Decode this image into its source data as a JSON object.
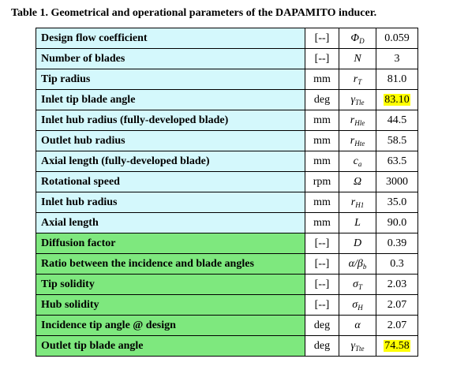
{
  "caption": "Table 1. Geometrical and operational parameters of the DAPAMITO inducer.",
  "colors": {
    "geometric_rows": "#d4f8fc",
    "operational_rows": "#7ee87e",
    "highlight": "#ffff00"
  },
  "rows": [
    {
      "name": "Design flow coefficient",
      "unit": "[--]",
      "symbol": "ΦD",
      "sym_main": "Φ",
      "sym_sub": "D",
      "value": "0.059",
      "group": "geometric"
    },
    {
      "name": "Number of blades",
      "unit": "[--]",
      "symbol": "N",
      "sym_main": "N",
      "sym_sub": "",
      "value": "3",
      "group": "geometric"
    },
    {
      "name": "Tip radius",
      "unit": "mm",
      "symbol": "rT",
      "sym_main": "r",
      "sym_sub": "T",
      "value": "81.0",
      "group": "geometric"
    },
    {
      "name": "Inlet tip blade angle",
      "unit": "deg",
      "symbol": "γTle",
      "sym_main": "γ",
      "sym_sub": "Tle",
      "value": "83.10",
      "group": "geometric",
      "highlight": true
    },
    {
      "name": "Inlet hub radius (fully-developed blade)",
      "unit": "mm",
      "symbol": "rHle",
      "sym_main": "r",
      "sym_sub": "Hle",
      "value": "44.5",
      "group": "geometric"
    },
    {
      "name": "Outlet hub radius",
      "unit": "mm",
      "symbol": "rHte",
      "sym_main": "r",
      "sym_sub": "Hte",
      "value": "58.5",
      "group": "geometric"
    },
    {
      "name": "Axial length (fully-developed blade)",
      "unit": "mm",
      "symbol": "ca",
      "sym_main": "c",
      "sym_sub": "a",
      "value": "63.5",
      "group": "geometric"
    },
    {
      "name": "Rotational speed",
      "unit": "rpm",
      "symbol": "Ω",
      "sym_main": "Ω",
      "sym_sub": "",
      "value": "3000",
      "group": "geometric"
    },
    {
      "name": "Inlet hub radius",
      "unit": "mm",
      "symbol": "rH1",
      "sym_main": "r",
      "sym_sub": "H1",
      "value": "35.0",
      "group": "geometric"
    },
    {
      "name": "Axial length",
      "unit": "mm",
      "symbol": "L",
      "sym_main": "L",
      "sym_sub": "",
      "value": "90.0",
      "group": "geometric"
    },
    {
      "name": "Diffusion factor",
      "unit": "[--]",
      "symbol": "D",
      "sym_main": "D",
      "sym_sub": "",
      "value": "0.39",
      "group": "operational"
    },
    {
      "name": "Ratio between the incidence and blade angles",
      "unit": "[--]",
      "symbol": "α/βb",
      "sym_main": "α/β",
      "sym_sub": "b",
      "value": "0.3",
      "group": "operational"
    },
    {
      "name": "Tip solidity",
      "unit": "[--]",
      "symbol": "σT",
      "sym_main": "σ",
      "sym_sub": "T",
      "value": "2.03",
      "group": "operational"
    },
    {
      "name": "Hub solidity",
      "unit": "[--]",
      "symbol": "σH",
      "sym_main": "σ",
      "sym_sub": "H",
      "value": "2.07",
      "group": "operational"
    },
    {
      "name": "Incidence tip angle @ design",
      "unit": "deg",
      "symbol": "α",
      "sym_main": "α",
      "sym_sub": "",
      "value": "2.07",
      "group": "operational"
    },
    {
      "name": "Outlet tip blade angle",
      "unit": "deg",
      "symbol": "γTte",
      "sym_main": "γ",
      "sym_sub": "Tte",
      "value": "74.58",
      "group": "operational",
      "highlight": true
    }
  ]
}
